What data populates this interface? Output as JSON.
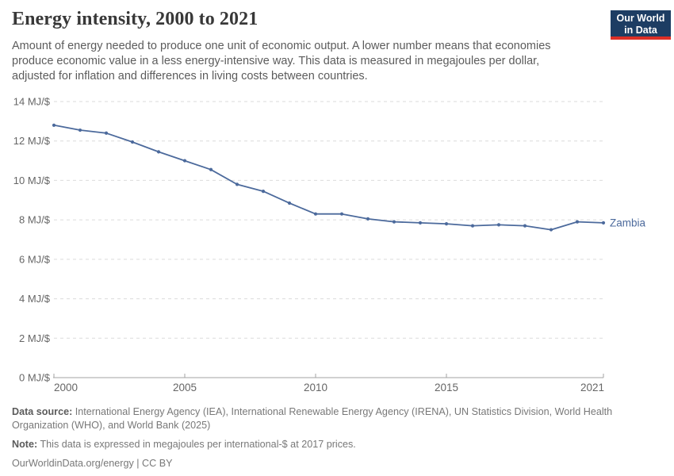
{
  "header": {
    "title": "Energy intensity, 2000 to 2021",
    "subtitle": "Amount of energy needed to produce one unit of economic output. A lower number means that economies produce economic value in a less energy-intensive way. This data is measured in megajoules per dollar, adjusted for inflation and differences in living costs between countries.",
    "logo": {
      "line1": "Our World",
      "line2": "in Data"
    }
  },
  "colors": {
    "line": "#4C6A9C",
    "grid": "#dbdbdb",
    "axis": "#a3a3a3",
    "tick_text": "#666666",
    "logo_bg": "#1d3d63",
    "logo_accent": "#dc2f26"
  },
  "chart_data": {
    "type": "line",
    "title": "Energy intensity, 2000 to 2021",
    "unit": "MJ/$",
    "x": [
      2000,
      2001,
      2002,
      2003,
      2004,
      2005,
      2006,
      2007,
      2008,
      2009,
      2010,
      2011,
      2012,
      2013,
      2014,
      2015,
      2016,
      2017,
      2018,
      2019,
      2020,
      2021
    ],
    "series": [
      {
        "name": "Zambia",
        "color": "#4C6A9C",
        "values": [
          12.8,
          12.55,
          12.4,
          11.95,
          11.45,
          11.0,
          10.55,
          9.8,
          9.45,
          8.85,
          8.3,
          8.3,
          8.05,
          7.9,
          7.85,
          7.8,
          7.7,
          7.75,
          7.7,
          7.5,
          7.9,
          7.85
        ]
      }
    ],
    "xlim": [
      2000,
      2021
    ],
    "ylim": [
      0,
      14
    ],
    "yticks": [
      0,
      2,
      4,
      6,
      8,
      10,
      12,
      14
    ],
    "ytick_labels": [
      "0 MJ/$",
      "2 MJ/$",
      "4 MJ/$",
      "6 MJ/$",
      "8 MJ/$",
      "10 MJ/$",
      "12 MJ/$",
      "14 MJ/$"
    ],
    "xticks": [
      2000,
      2005,
      2010,
      2015,
      2021
    ],
    "xtick_labels": [
      "2000",
      "2005",
      "2010",
      "2015",
      "2021"
    ],
    "grid": "horizontal-dashed",
    "legend": "inline-end-label"
  },
  "footer": {
    "source_label": "Data source:",
    "source_text": "International Energy Agency (IEA), International Renewable Energy Agency (IRENA), UN Statistics Division, World Health Organization (WHO), and World Bank (2025)",
    "note_label": "Note:",
    "note_text": "This data is expressed in megajoules per international-$ at 2017 prices.",
    "url": "OurWorldinData.org/energy",
    "separator": "|",
    "license": "CC BY"
  }
}
